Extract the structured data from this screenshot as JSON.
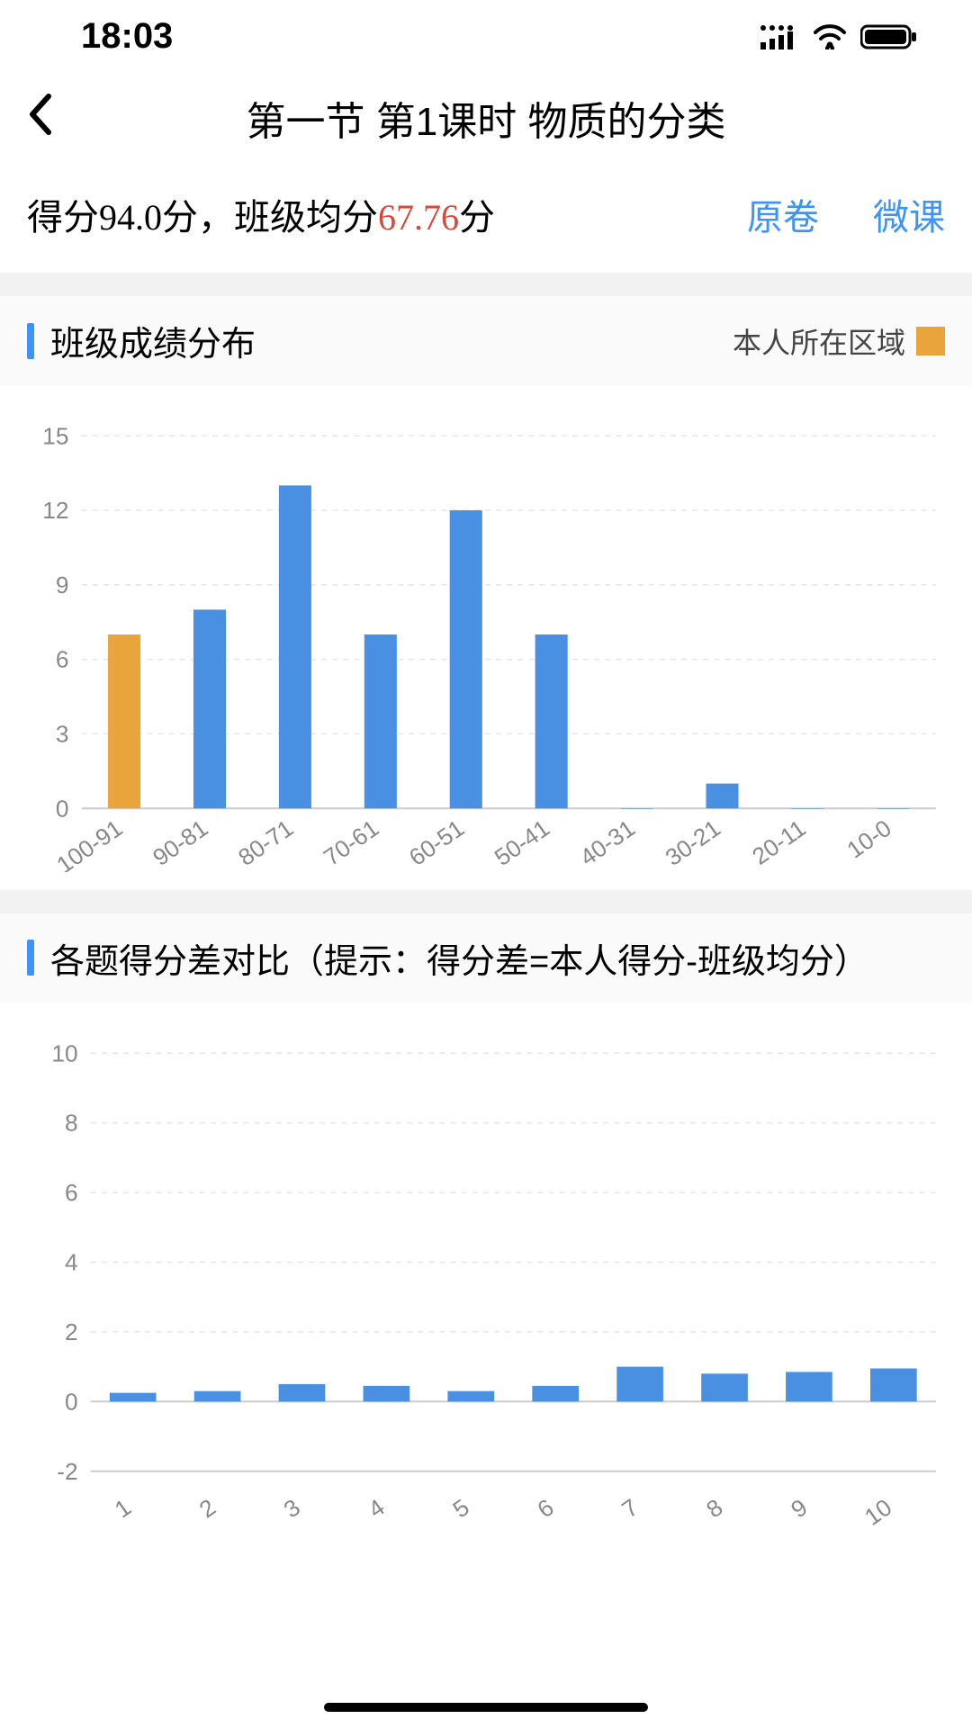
{
  "status": {
    "time": "18:03"
  },
  "nav": {
    "title": "第一节 第1课时 物质的分类"
  },
  "score_line": {
    "prefix": "得分",
    "my_score": "94.0",
    "mid": "分，班级均分",
    "avg_score": "67.76",
    "suffix": "分"
  },
  "links": {
    "original": "原卷",
    "micro": "微课"
  },
  "section1": {
    "title": "班级成绩分布",
    "legend_label": "本人所在区域",
    "legend_color": "#eaa43c"
  },
  "chart1": {
    "type": "bar",
    "categories": [
      "100-91",
      "90-81",
      "80-71",
      "70-61",
      "60-51",
      "50-41",
      "40-31",
      "30-21",
      "20-11",
      "10-0"
    ],
    "values": [
      7,
      8,
      13,
      7,
      12,
      7,
      0,
      1,
      0,
      0
    ],
    "highlight_index": 0,
    "bar_color": "#4a90e2",
    "highlight_color": "#eaa43c",
    "ylim": [
      0,
      15
    ],
    "ytick_step": 3,
    "grid_color": "#e6e6e6",
    "axis_color": "#cccccc",
    "label_color": "#888888",
    "label_fontsize": 26,
    "bar_width_ratio": 0.38,
    "rotate_xlabels": -35
  },
  "section2": {
    "title": "各题得分差对比（提示：得分差=本人得分-班级均分）"
  },
  "chart2": {
    "type": "bar",
    "categories": [
      "1",
      "2",
      "3",
      "4",
      "5",
      "6",
      "7",
      "8",
      "9",
      "10"
    ],
    "values": [
      0.25,
      0.3,
      0.5,
      0.45,
      0.3,
      0.45,
      1.0,
      0.8,
      0.85,
      0.95
    ],
    "bar_color": "#4a90e2",
    "ylim": [
      -2,
      10
    ],
    "ytick_step": 2,
    "grid_color": "#e6e6e6",
    "axis_color": "#cccccc",
    "label_color": "#888888",
    "label_fontsize": 26,
    "bar_width_ratio": 0.55,
    "rotate_xlabels": -35
  }
}
